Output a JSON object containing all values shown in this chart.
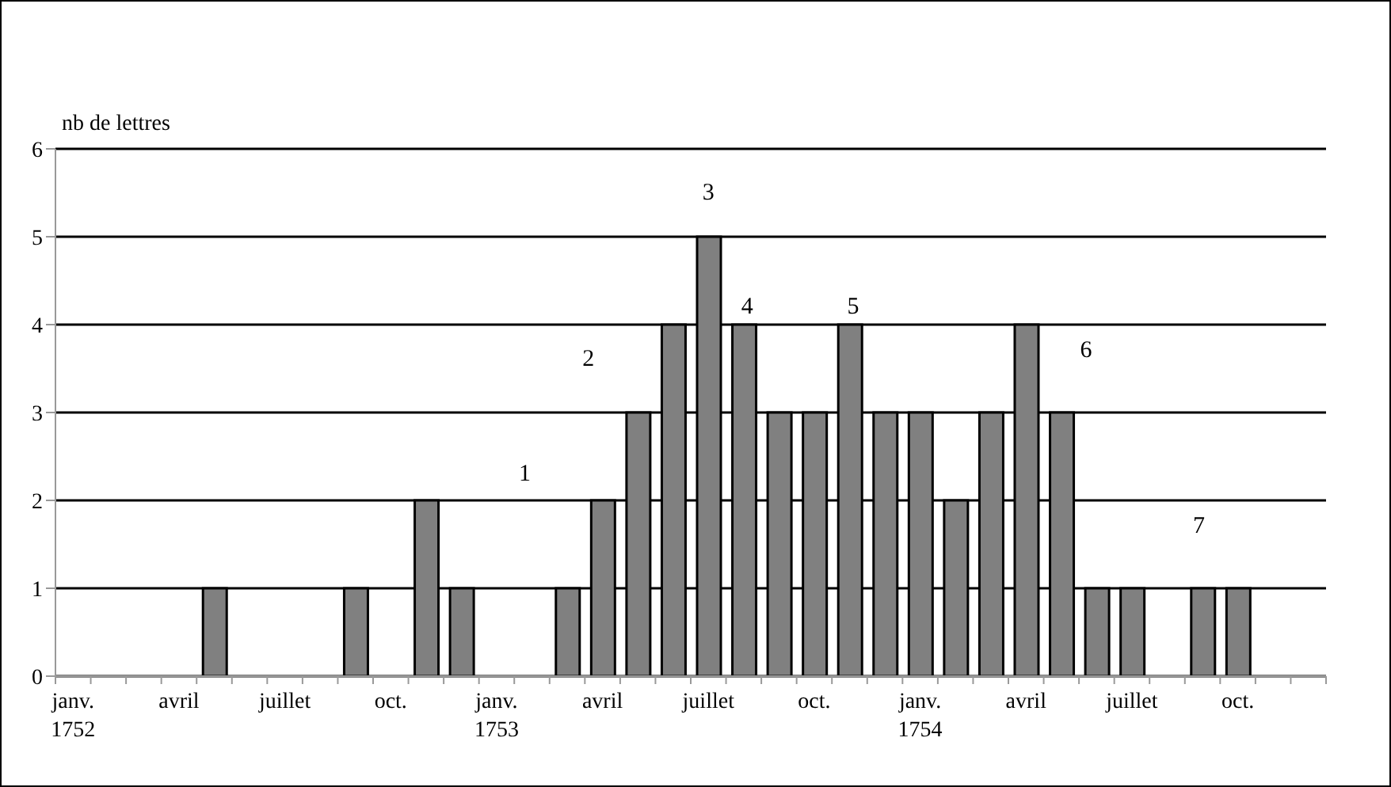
{
  "chart_data": {
    "type": "bar",
    "ylabel": "nb de lettres",
    "categories": [
      "janv. 1752",
      null,
      null,
      "avril",
      null,
      null,
      "juillet",
      null,
      null,
      "oct.",
      null,
      null,
      "janv. 1753",
      null,
      null,
      "avril",
      null,
      null,
      "juillet",
      null,
      null,
      "oct.",
      null,
      null,
      "janv. 1754",
      null,
      null,
      "avril",
      null,
      null,
      "juillet",
      null,
      null,
      "oct.",
      null,
      null
    ],
    "values": [
      null,
      null,
      null,
      null,
      1,
      null,
      null,
      null,
      1,
      null,
      2,
      1,
      null,
      null,
      1,
      2,
      3,
      4,
      5,
      4,
      3,
      3,
      4,
      3,
      3,
      2,
      3,
      4,
      3,
      1,
      1,
      null,
      1,
      1,
      null,
      null
    ],
    "color": "#808080",
    "ylim": [
      0,
      6
    ],
    "yticks": [
      0,
      1,
      2,
      3,
      4,
      5,
      6
    ],
    "grid": "y",
    "annotations": [
      "1",
      "2",
      "3",
      "4",
      "5",
      "6",
      "7"
    ]
  }
}
